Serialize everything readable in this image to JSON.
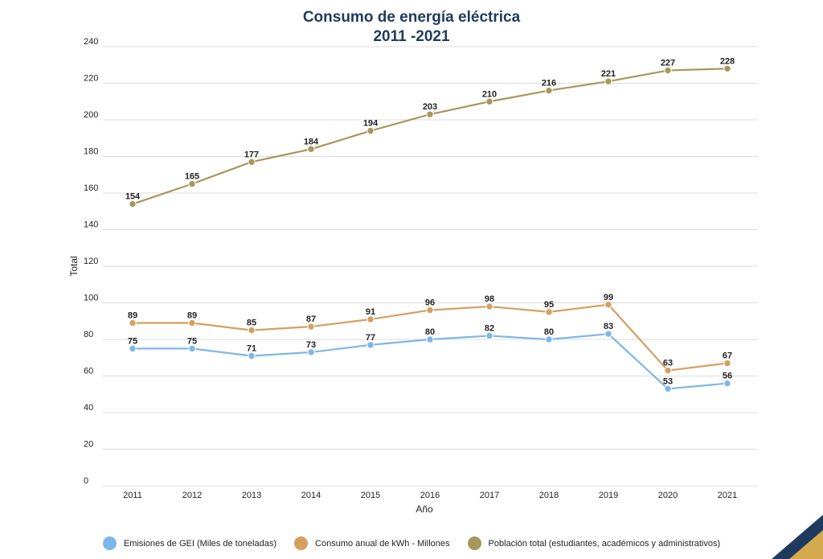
{
  "chart_data": {
    "type": "line",
    "title": "Consumo de energía eléctrica",
    "subtitle": "2011 -2021",
    "xlabel": "Año",
    "ylabel": "Total",
    "ylim": [
      0,
      240
    ],
    "yticks": [
      0,
      20,
      40,
      60,
      80,
      100,
      120,
      140,
      160,
      180,
      200,
      220,
      240
    ],
    "categories": [
      "2011",
      "2012",
      "2013",
      "2014",
      "2015",
      "2016",
      "2017",
      "2018",
      "2019",
      "2020",
      "2021"
    ],
    "grid": true,
    "legend_position": "bottom",
    "series": [
      {
        "name": "Emisiones de GEI (Miles de toneladas)",
        "color": "#7fb6e8",
        "values": [
          75,
          75,
          71,
          73,
          77,
          80,
          82,
          80,
          83,
          53,
          56
        ],
        "labels": [
          "75",
          "75",
          "71",
          "73",
          "77",
          "80",
          "82",
          "80",
          "83",
          "53",
          "56"
        ]
      },
      {
        "name": "Consumo anual de kWh - Millones",
        "color": "#d4a060",
        "values": [
          89,
          89,
          85,
          87,
          91,
          96,
          98,
          95,
          99,
          63,
          67
        ],
        "labels": [
          "89",
          "89",
          "85",
          "87",
          "91",
          "96",
          "98",
          "95",
          "99",
          "63",
          "67"
        ]
      },
      {
        "name": "Población total (estudiantes, académicos y administrativos)",
        "color": "#a8975a",
        "values": [
          154,
          165,
          177,
          184,
          194,
          203,
          210,
          216,
          221,
          227,
          228
        ],
        "labels": [
          "154",
          "165",
          "177",
          "184",
          "194",
          "203",
          "210",
          "216",
          "221",
          "227",
          "228"
        ]
      }
    ]
  },
  "corner": {
    "navy": "#1f3a5f",
    "gold": "#d4a94e"
  }
}
